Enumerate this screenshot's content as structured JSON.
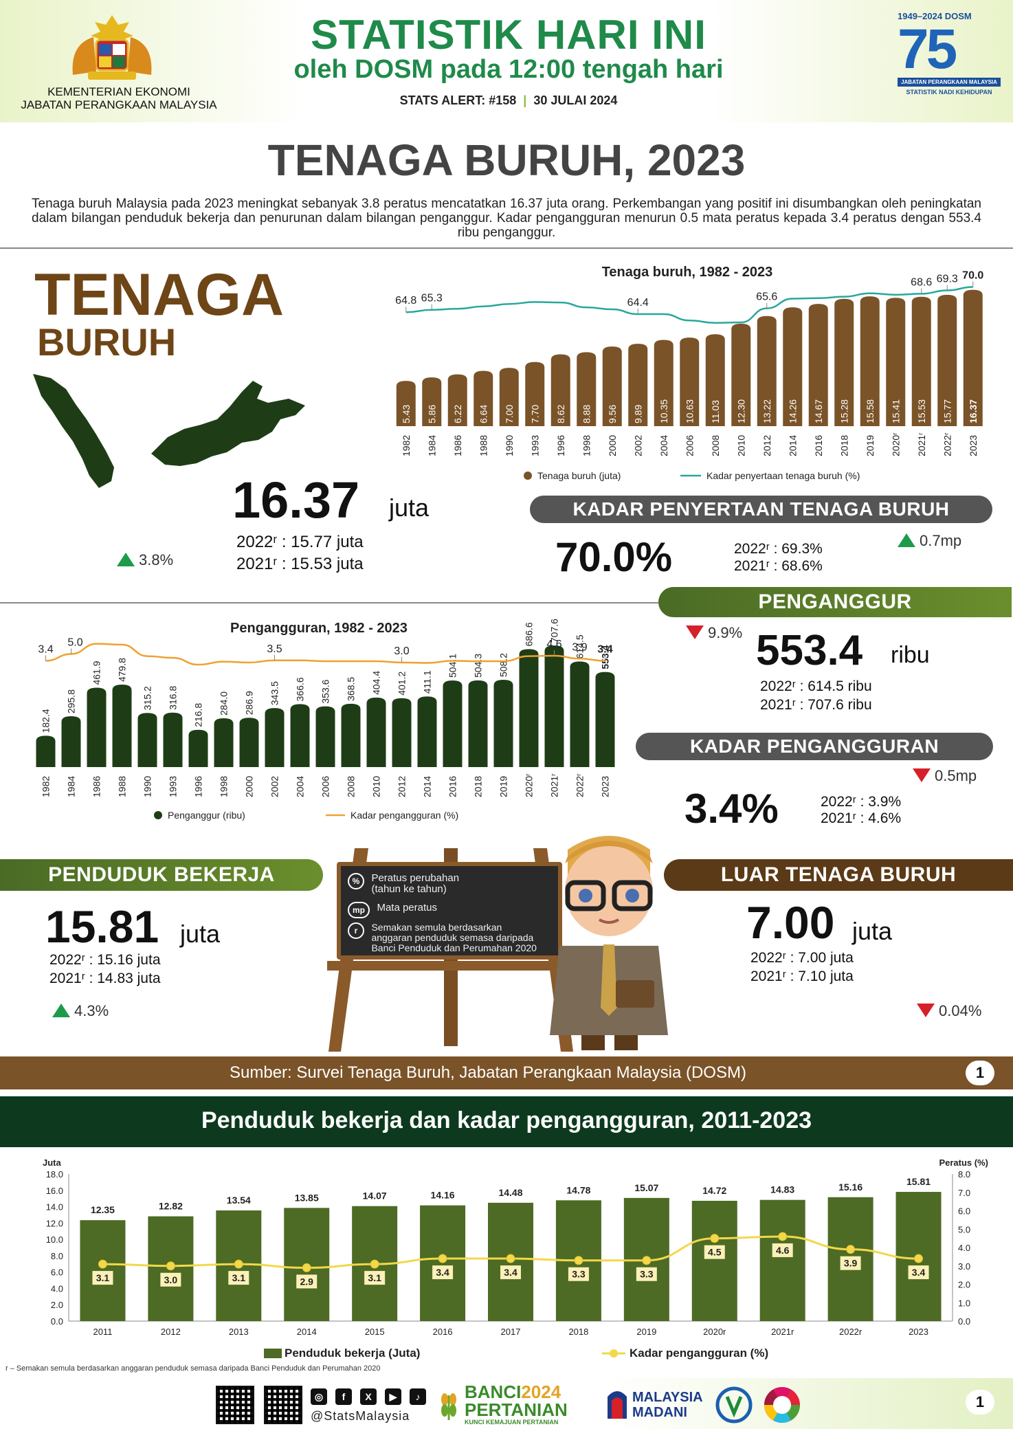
{
  "header": {
    "ministry_line1": "KEMENTERIAN EKONOMI",
    "ministry_line2": "JABATAN PERANGKAAN MALAYSIA",
    "title_main": "STATISTIK HARI INI",
    "title_sub": "oleh DOSM pada 12:00 tengah hari",
    "alert": "STATS ALERT: #158",
    "separator": "|",
    "date": "30 JULAI 2024",
    "badge_years": "1949–2024",
    "badge_org": "DOSM",
    "badge_number": "75",
    "badge_caption": "JABATAN PERANGKAAN MALAYSIA",
    "badge_tagline": "STATISTIK NADI KEHIDUPAN"
  },
  "page": {
    "title": "TENAGA BURUH, 2023",
    "intro": "Tenaga buruh Malaysia pada 2023 meningkat sebanyak 3.8 peratus mencatatkan 16.37 juta orang. Perkembangan yang positif ini disumbangkan oleh peningkatan dalam bilangan penduduk bekerja dan penurunan dalam bilangan penganggur. Kadar pengangguran menurun 0.5 mata peratus kepada 3.4 peratus dengan 553.4 ribu penganggur."
  },
  "labour_force": {
    "heading1": "TENAGA",
    "heading2": "BURUH",
    "value": "16.37",
    "unit": "juta",
    "prev1_label": "2022ʳ",
    "prev1_value": ": 15.77 juta",
    "prev2_label": "2021ʳ",
    "prev2_value": ": 15.53 juta",
    "change": "3.8%"
  },
  "lfpr": {
    "title": "KADAR PENYERTAAN TENAGA BURUH",
    "value": "70.0%",
    "prev1": "2022ʳ : 69.3%",
    "prev2": "2021ʳ : 68.6%",
    "change": "0.7mp"
  },
  "unemployed": {
    "title": "PENGANGGUR",
    "value": "553.4",
    "unit": "ribu",
    "prev1": "2022ʳ  : 614.5 ribu",
    "prev2": "2021ʳ  : 707.6 ribu",
    "change": "9.9%"
  },
  "unemployment_rate": {
    "title": "KADAR PENGANGGURAN",
    "value": "3.4%",
    "prev1": "2022ʳ : 3.9%",
    "prev2": "2021ʳ : 4.6%",
    "change": "0.5mp"
  },
  "employed": {
    "title": "PENDUDUK BEKERJA",
    "value": "15.81",
    "unit": "juta",
    "prev1": "2022ʳ  : 15.16 juta",
    "prev2": "2021ʳ  : 14.83 juta",
    "change": "4.3%"
  },
  "outside_lf": {
    "title": "LUAR TENAGA BURUH",
    "value": "7.00",
    "unit": "juta",
    "prev1": "2022ʳ  : 7.00 juta",
    "prev2": "2021ʳ  : 7.10 juta",
    "change": "0.04%"
  },
  "board": {
    "pct_symbol": "%",
    "pct_text1": "Peratus perubahan",
    "pct_text2": "(tahun ke tahun)",
    "mp_symbol": "mp",
    "mp_text": "Mata peratus",
    "r_symbol": "r",
    "r_text1": "Semakan semula berdasarkan",
    "r_text2": "anggaran penduduk semasa daripada",
    "r_text3": "Banci Penduduk dan Perumahan 2020"
  },
  "source": {
    "text": "Sumber: Survei Tenaga Buruh, Jabatan Perangkaan Malaysia (DOSM)",
    "page": "1"
  },
  "bottom_section": {
    "title": "Penduduk bekerja dan kadar pengangguran, 2011-2023"
  },
  "footnote": "r – Semakan  semula berdasarkan anggaran penduduk semasa daripada Banci Penduduk dan Perumahan  2020",
  "footer": {
    "handle": "@StatsMalaysia",
    "banci_line1": "BANCI",
    "banci_year": "2024",
    "banci_line2": "PERTANIAN",
    "banci_tagline": "KUNCI KEMAJUAN PERTANIAN",
    "madani_line1": "MALAYSIA",
    "madani_line2": "MADANI",
    "page": "1",
    "social_icons": [
      "instagram-icon",
      "facebook-icon",
      "x-icon",
      "youtube-icon",
      "tiktok-icon"
    ]
  },
  "colors": {
    "brown": "#7a5328",
    "dark_green": "#1e3d16",
    "olive": "#4d6b24",
    "teal": "#27a89a",
    "orange": "#f0a030",
    "yellow": "#f2d84a",
    "green_title": "#1f8a4a"
  },
  "chart_data": [
    {
      "type": "bar",
      "title": "Tenaga buruh, 1982 - 2023",
      "categories": [
        "1982",
        "1984",
        "1986",
        "1988",
        "1990",
        "1993",
        "1996",
        "1998",
        "2000",
        "2002",
        "2004",
        "2006",
        "2008",
        "2010",
        "2012",
        "2014",
        "2016",
        "2018",
        "2019",
        "2020ʳ",
        "2021ʳ",
        "2022ʳ",
        "2023"
      ],
      "series": [
        {
          "name": "Tenaga buruh (juta)",
          "type": "bar",
          "values": [
            5.43,
            5.86,
            6.22,
            6.64,
            7.0,
            7.7,
            8.62,
            8.88,
            9.56,
            9.89,
            10.35,
            10.63,
            11.03,
            12.3,
            13.22,
            14.26,
            14.67,
            15.28,
            15.58,
            15.41,
            15.53,
            15.77,
            16.37
          ]
        },
        {
          "name": "Kadar penyertaan tenaga buruh (%)",
          "type": "line",
          "values": [
            64.8,
            65.3,
            65.5,
            66.0,
            66.5,
            66.9,
            66.8,
            65.8,
            65.4,
            64.4,
            64.4,
            63.1,
            62.6,
            62.7,
            65.6,
            67.6,
            67.7,
            68.0,
            68.7,
            68.4,
            68.6,
            69.3,
            70.0
          ]
        }
      ],
      "line_labels": [
        {
          "index": 0,
          "text": "64.8"
        },
        {
          "index": 1,
          "text": "65.3"
        },
        {
          "index": 9,
          "text": "64.4"
        },
        {
          "index": 14,
          "text": "65.6"
        },
        {
          "index": 20,
          "text": "68.6"
        },
        {
          "index": 21,
          "text": "69.3"
        },
        {
          "index": 22,
          "text": "70.0"
        }
      ],
      "bar_labels": [
        "5.43",
        "5.86",
        "6.22",
        "6.64",
        "7.00",
        "7.70",
        "8.62",
        "8.88",
        "9.56",
        "9.89",
        "10.35",
        "10.63",
        "11.03",
        "12.30",
        "13.22",
        "14.26",
        "14.67",
        "15.28",
        "15.58",
        "15.41",
        "15.53",
        "15.77",
        "16.37"
      ],
      "legend": [
        "Tenaga buruh (juta)",
        "Kadar penyertaan tenaga buruh (%)"
      ],
      "legend_position": "bottom"
    },
    {
      "type": "bar",
      "title": "Pengangguran, 1982 - 2023",
      "categories": [
        "1982",
        "1984",
        "1986",
        "1988",
        "1990",
        "1993",
        "1996",
        "1998",
        "2000",
        "2002",
        "2004",
        "2006",
        "2008",
        "2010",
        "2012",
        "2014",
        "2016",
        "2018",
        "2019",
        "2020ʳ",
        "2021ʳ",
        "2022ʳ",
        "2023"
      ],
      "series": [
        {
          "name": "Penganggur (ribu)",
          "type": "bar",
          "values": [
            182.4,
            295.8,
            461.9,
            479.8,
            315.2,
            316.8,
            216.8,
            284.0,
            286.9,
            343.5,
            366.6,
            353.6,
            368.5,
            404.4,
            401.2,
            411.1,
            504.1,
            504.3,
            508.2,
            686.6,
            707.6,
            614.5,
            553.4
          ]
        },
        {
          "name": "Kadar pengangguran (%)",
          "type": "line",
          "values": [
            3.4,
            5.0,
            7.4,
            7.2,
            4.5,
            4.1,
            2.5,
            3.2,
            3.0,
            3.5,
            3.5,
            3.3,
            3.3,
            3.3,
            3.0,
            2.9,
            3.4,
            3.3,
            3.3,
            4.5,
            4.6,
            3.9,
            3.4
          ]
        }
      ],
      "line_labels": [
        {
          "index": 0,
          "text": "3.4"
        },
        {
          "index": 1,
          "text": "5.0"
        },
        {
          "index": 9,
          "text": "3.5"
        },
        {
          "index": 14,
          "text": "3.0"
        },
        {
          "index": 20,
          "text": "4.6"
        },
        {
          "index": 21,
          "text": "3.9"
        },
        {
          "index": 22,
          "text": "3.4"
        }
      ],
      "bar_labels": [
        "182.4",
        "295.8",
        "461.9",
        "479.8",
        "315.2",
        "316.8",
        "216.8",
        "284.0",
        "286.9",
        "343.5",
        "366.6",
        "353.6",
        "368.5",
        "404.4",
        "401.2",
        "411.1",
        "504.1",
        "504.3",
        "508.2",
        "686.6",
        "707.6",
        "614.5",
        "553.4"
      ],
      "legend": [
        "Penganggur (ribu)",
        "Kadar pengangguran (%)"
      ],
      "legend_position": "bottom"
    },
    {
      "type": "bar",
      "categories": [
        "2011",
        "2012",
        "2013",
        "2014",
        "2015",
        "2016",
        "2017",
        "2018",
        "2019",
        "2020r",
        "2021r",
        "2022r",
        "2023"
      ],
      "series": [
        {
          "name": "Penduduk bekerja (Juta)",
          "type": "bar",
          "axis": "left",
          "values": [
            12.35,
            12.82,
            13.54,
            13.85,
            14.07,
            14.16,
            14.48,
            14.78,
            15.07,
            14.72,
            14.83,
            15.16,
            15.81
          ]
        },
        {
          "name": "Kadar pengangguran (%)",
          "type": "line",
          "axis": "right",
          "values": [
            3.1,
            3.0,
            3.1,
            2.9,
            3.1,
            3.4,
            3.4,
            3.3,
            3.3,
            4.5,
            4.6,
            3.9,
            3.4
          ]
        }
      ],
      "ylabel_left": "Juta",
      "ylabel_right": "Peratus (%)",
      "ylim_left": [
        0,
        18
      ],
      "ylim_right": [
        0,
        8
      ],
      "yticks_left": [
        "0.0",
        "2.0",
        "4.0",
        "6.0",
        "8.0",
        "10.0",
        "12.0",
        "14.0",
        "16.0",
        "18.0"
      ],
      "yticks_right": [
        "0.0",
        "1.0",
        "2.0",
        "3.0",
        "4.0",
        "5.0",
        "6.0",
        "7.0",
        "8.0"
      ],
      "legend": [
        "Penduduk bekerja (Juta)",
        "Kadar pengangguran (%)"
      ],
      "legend_position": "bottom",
      "grid": false
    }
  ]
}
